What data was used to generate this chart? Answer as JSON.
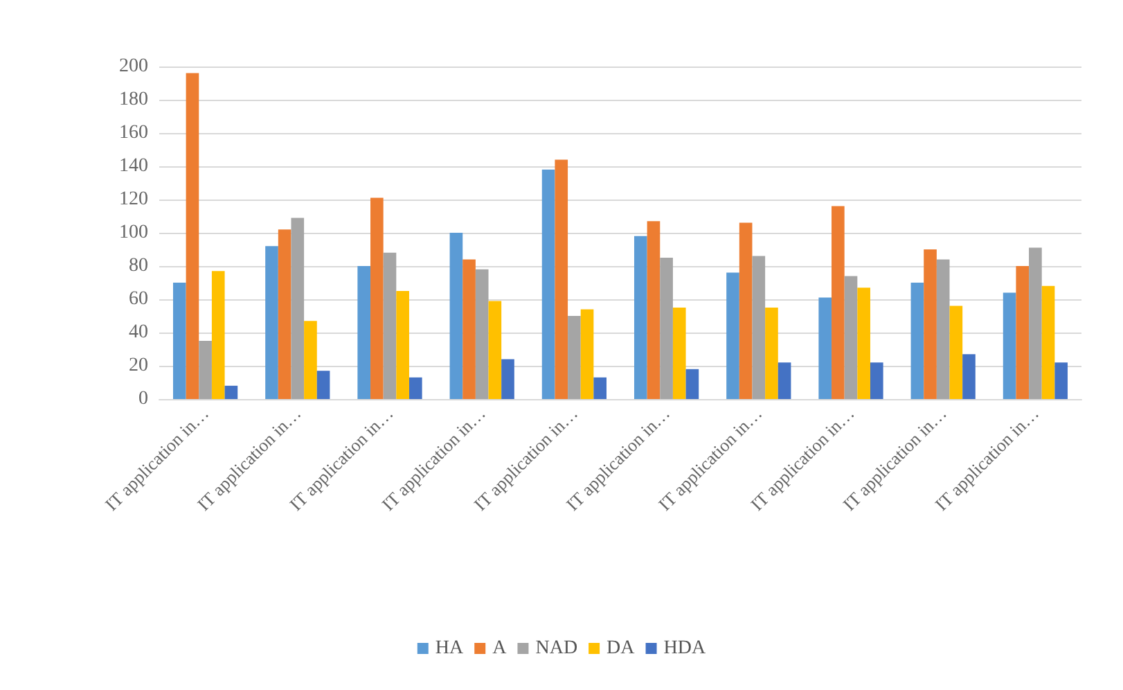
{
  "chart_data": {
    "type": "bar",
    "categories": [
      "IT application in…",
      "IT application in…",
      "IT application in…",
      "IT application in…",
      "IT application in…",
      "IT application in…",
      "IT application in…",
      "IT application in…",
      "IT application in…",
      "IT application in…"
    ],
    "series": [
      {
        "name": "HA",
        "color": "#5b9bd5",
        "values": [
          70,
          92,
          80,
          100,
          138,
          98,
          76,
          61,
          70,
          64
        ]
      },
      {
        "name": "A",
        "color": "#ed7d31",
        "values": [
          196,
          102,
          121,
          84,
          144,
          107,
          106,
          116,
          90,
          80
        ]
      },
      {
        "name": "NAD",
        "color": "#a5a5a5",
        "values": [
          35,
          109,
          88,
          78,
          50,
          85,
          86,
          74,
          84,
          91
        ]
      },
      {
        "name": "DA",
        "color": "#ffc000",
        "values": [
          77,
          47,
          65,
          59,
          54,
          55,
          55,
          67,
          56,
          68
        ]
      },
      {
        "name": "HDA",
        "color": "#4472c4",
        "values": [
          8,
          17,
          13,
          24,
          13,
          18,
          22,
          22,
          27,
          22
        ]
      }
    ],
    "ylim": [
      0,
      200
    ],
    "yticks": [
      0,
      20,
      40,
      60,
      80,
      100,
      120,
      140,
      160,
      180,
      200
    ],
    "grid": "y",
    "legend": "bottom"
  }
}
